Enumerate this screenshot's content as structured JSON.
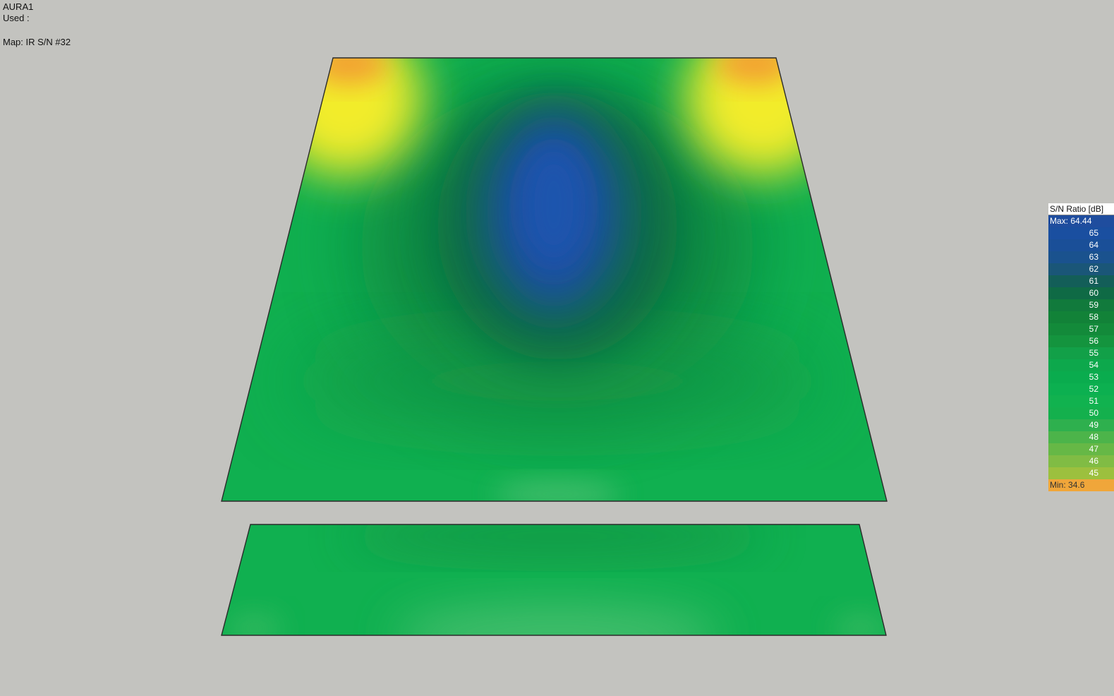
{
  "header": {
    "app_name": "AURA1",
    "used_label": "Used :",
    "map_label": "Map: IR S/N #32"
  },
  "legend": {
    "title": "S/N Ratio [dB]",
    "max_label": "Max:",
    "max_value": "64.44",
    "min_label": "Min:",
    "min_value": "34.6",
    "ticks": [
      "65",
      "64",
      "63",
      "62",
      "61",
      "60",
      "59",
      "58",
      "57",
      "56",
      "55",
      "54",
      "53",
      "52",
      "51",
      "50",
      "49",
      "48",
      "47",
      "46",
      "45"
    ],
    "tick_colors": [
      "#1a4fa0",
      "#1a4f98",
      "#1a528e",
      "#1a5678",
      "#135e58",
      "#0f6a45",
      "#117a3c",
      "#128238",
      "#138a3a",
      "#14943e",
      "#12a048",
      "#0da84c",
      "#0aac4e",
      "#0cb050",
      "#11b24f",
      "#14b04d",
      "#2eb04e",
      "#4cb44a",
      "#66b846",
      "#80bc44",
      "#9cc03e"
    ]
  },
  "colors": {
    "background": "#c3c3bf",
    "field_green": "#10b050",
    "field_dark_green": "#0f7a42",
    "field_blue": "#1a4fa3",
    "field_yellow": "#f2ec2a",
    "field_orange": "#f3a233"
  }
}
